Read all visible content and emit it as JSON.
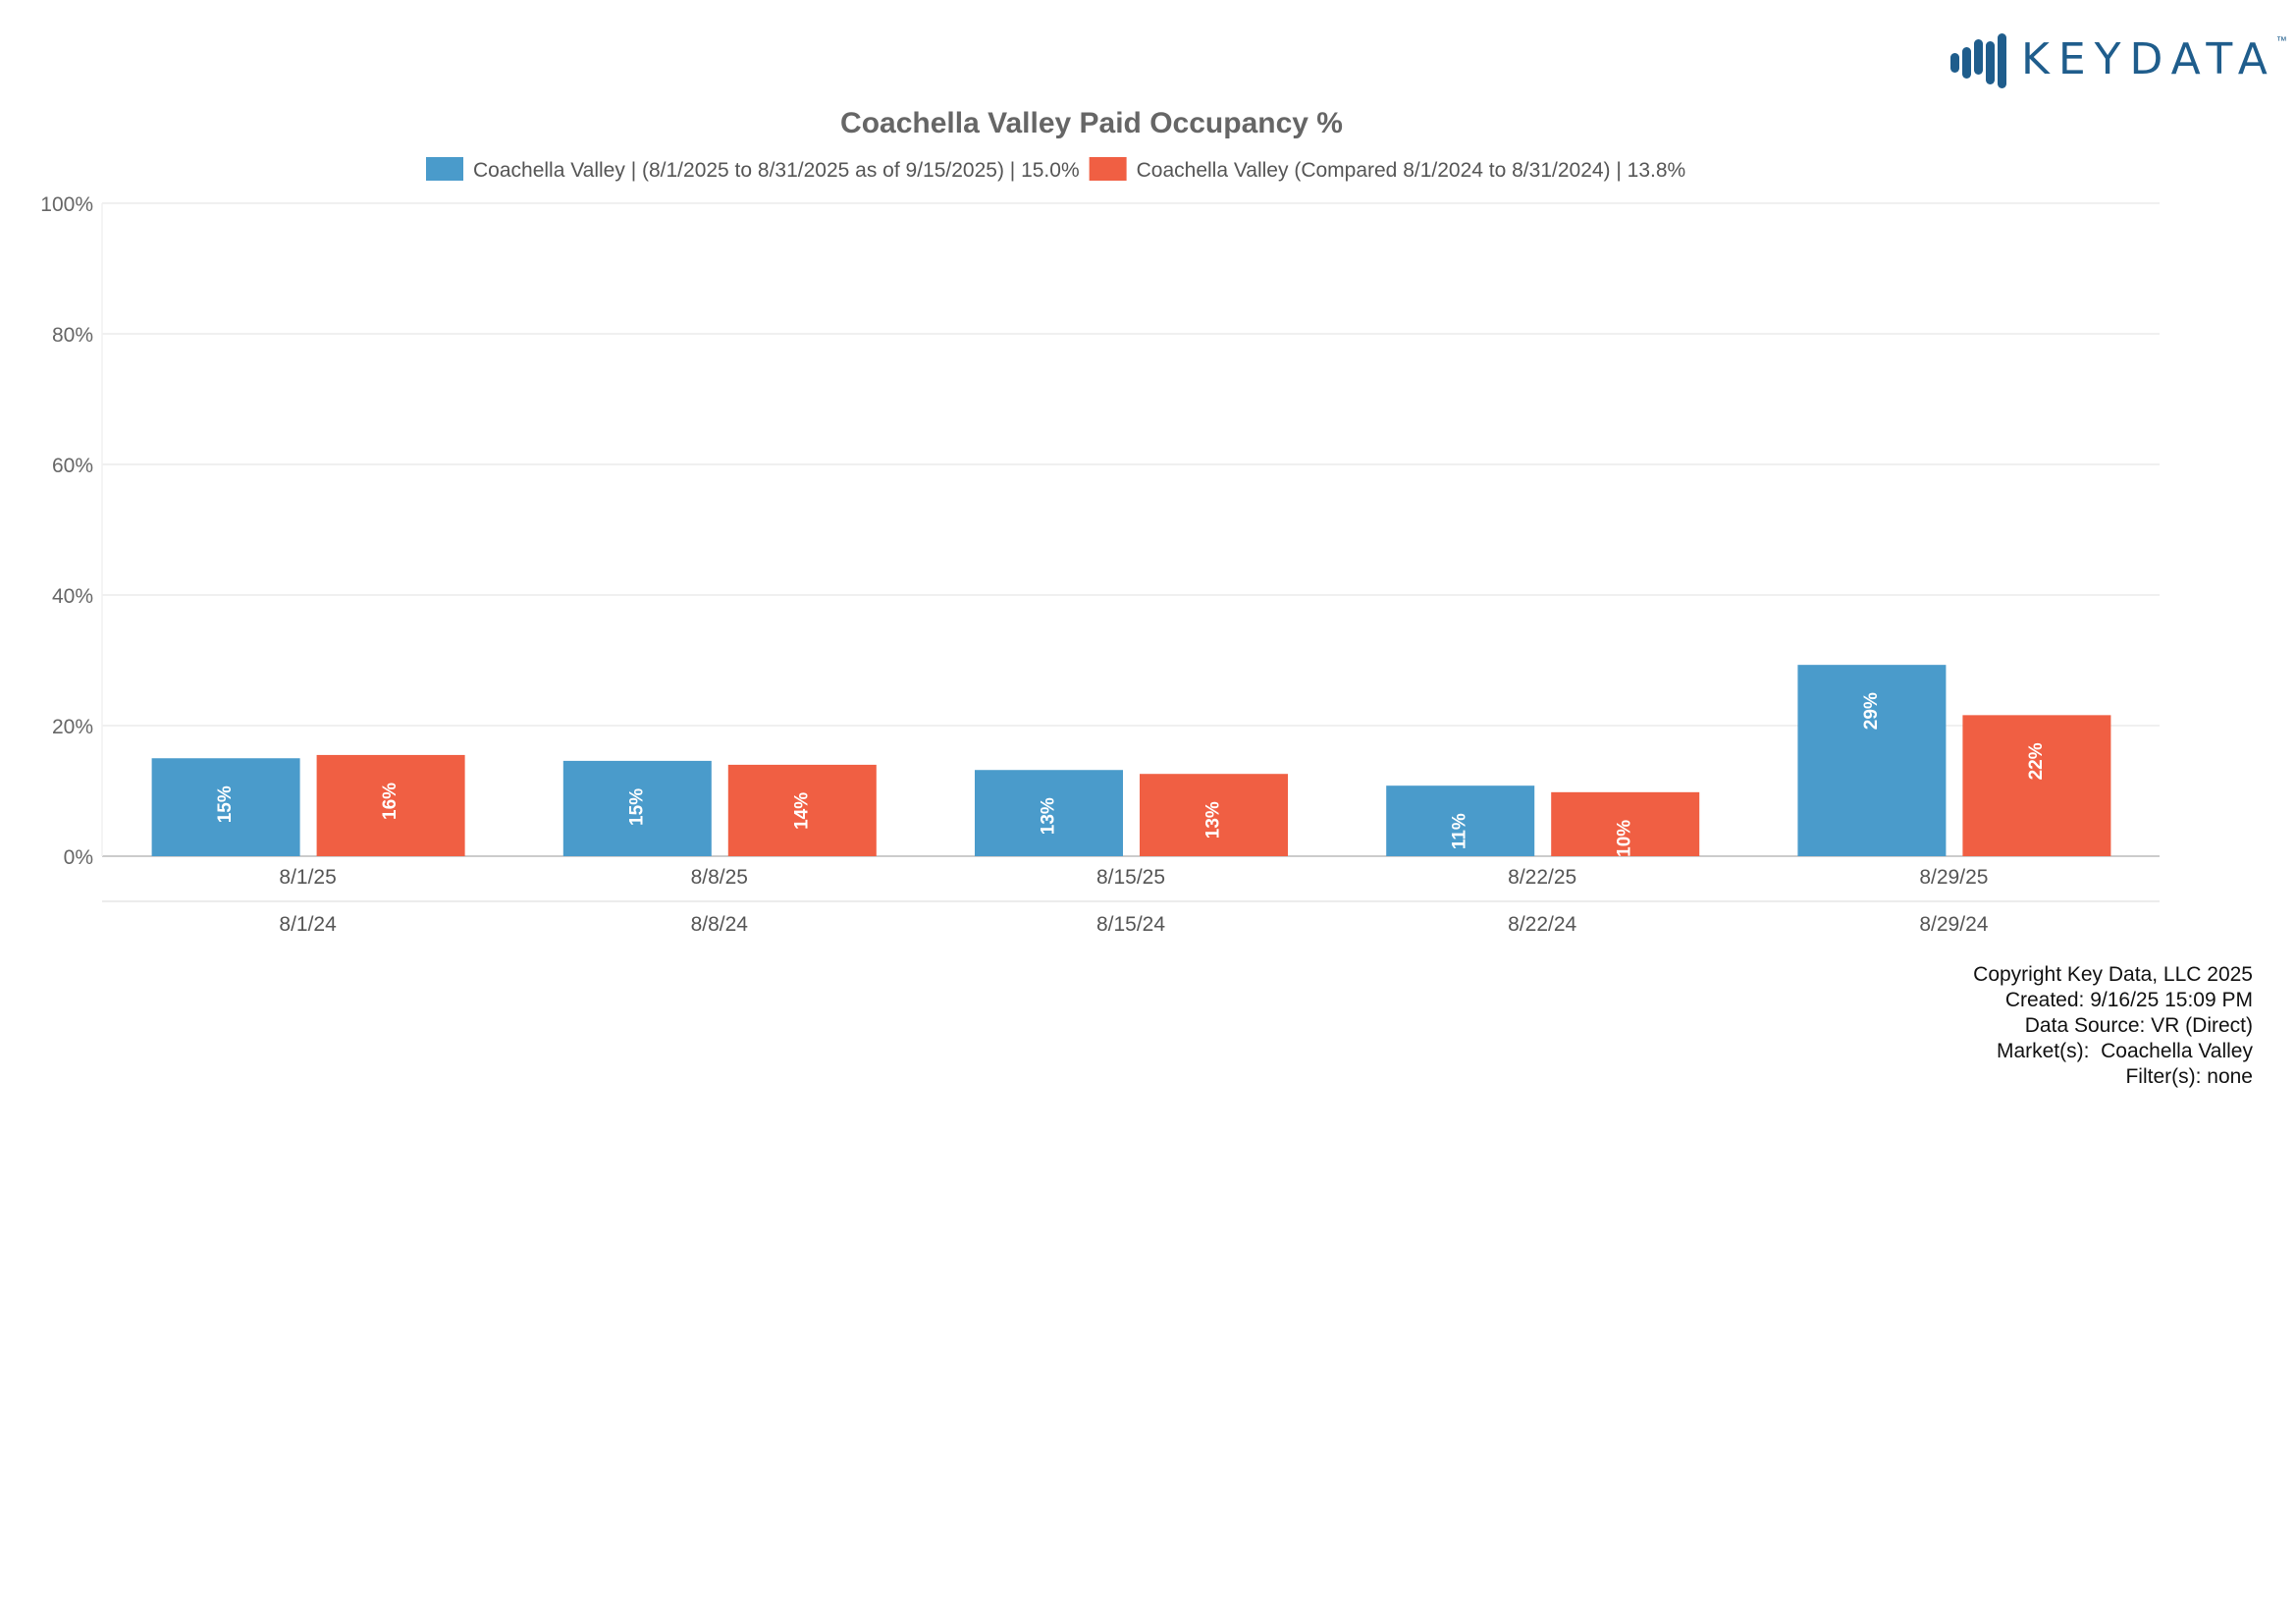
{
  "logo": {
    "text": "KEYDATA",
    "tm": "™",
    "color": "#1f5d8c"
  },
  "chart_data": {
    "type": "bar",
    "title": "Coachella Valley Paid Occupancy %",
    "categories": [
      "8/1/25",
      "8/8/25",
      "8/15/25",
      "8/22/25",
      "8/29/25"
    ],
    "secondary_categories": [
      "8/1/24",
      "8/8/24",
      "8/15/24",
      "8/22/24",
      "8/29/24"
    ],
    "series": [
      {
        "name": "Coachella Valley | (8/1/2025 to 8/31/2025 as of 9/15/2025) | 15.0%",
        "color": "#4a9bcb",
        "values": [
          15.0,
          14.6,
          13.2,
          10.8,
          29.3
        ],
        "labels": [
          "15%",
          "15%",
          "13%",
          "11%",
          "29%"
        ]
      },
      {
        "name": "Coachella Valley (Compared 8/1/2024 to 8/31/2024) | 13.8%",
        "color": "#f05f43",
        "values": [
          15.5,
          14.0,
          12.6,
          9.8,
          21.6
        ],
        "labels": [
          "16%",
          "14%",
          "13%",
          "10%",
          "22%"
        ]
      }
    ],
    "yticks": [
      "0%",
      "20%",
      "40%",
      "60%",
      "80%",
      "100%"
    ],
    "ylim": [
      0,
      100
    ],
    "grid": true,
    "legend": "top"
  },
  "footer": {
    "lines": [
      "Copyright Key Data, LLC 2025",
      "Created: 9/16/25 15:09 PM",
      "Data Source: VR (Direct)",
      "Market(s):  Coachella Valley",
      "Filter(s): none"
    ]
  }
}
